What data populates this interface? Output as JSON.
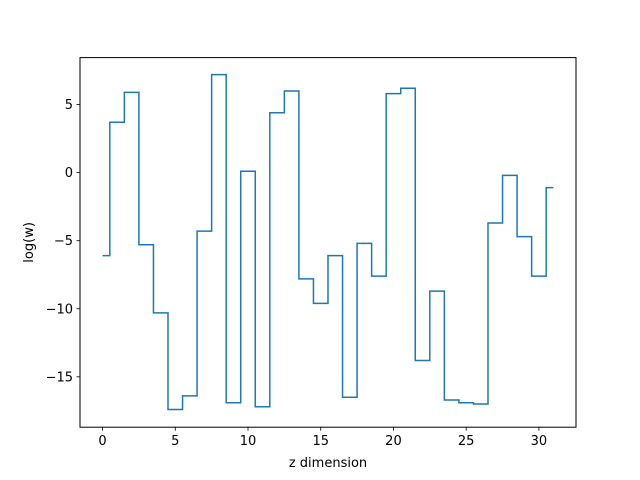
{
  "chart_data": {
    "type": "line",
    "drawstyle": "steps-mid",
    "xlabel": "z dimension",
    "ylabel": "log(w)",
    "xlim": [
      -1.55,
      32.55
    ],
    "ylim": [
      -18.7,
      8.45
    ],
    "xticks": [
      0,
      5,
      10,
      15,
      20,
      25,
      30
    ],
    "yticks": [
      -15,
      -10,
      -5,
      0,
      5
    ],
    "xtick_labels": [
      "0",
      "5",
      "10",
      "15",
      "20",
      "25",
      "30"
    ],
    "ytick_labels": [
      "−15",
      "−10",
      "−5",
      "0",
      "5"
    ],
    "grid": false,
    "series": [
      {
        "color": "#1f77b4",
        "x": [
          0,
          1,
          2,
          3,
          4,
          5,
          6,
          7,
          8,
          9,
          10,
          11,
          12,
          13,
          14,
          15,
          16,
          17,
          18,
          19,
          20,
          21,
          22,
          23,
          24,
          25,
          26,
          27,
          28,
          29,
          30,
          31
        ],
        "values": [
          -6.1,
          3.7,
          5.9,
          -5.3,
          -10.3,
          -17.4,
          -16.4,
          -4.3,
          7.2,
          -16.9,
          0.1,
          -17.2,
          4.4,
          6.0,
          -7.8,
          -9.6,
          -6.1,
          -16.5,
          -5.2,
          -7.6,
          5.8,
          6.2,
          -13.8,
          -8.7,
          -16.7,
          -16.9,
          -17.0,
          -3.7,
          -0.2,
          -4.7,
          -7.6,
          -1.1
        ]
      }
    ]
  }
}
